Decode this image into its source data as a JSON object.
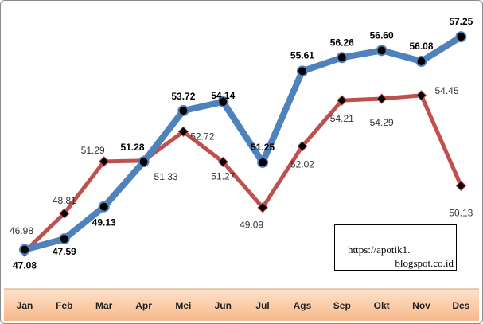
{
  "chart_data": {
    "type": "line",
    "categories": [
      "Jan",
      "Feb",
      "Mar",
      "Apr",
      "Mei",
      "Jun",
      "Jul",
      "Ags",
      "Sep",
      "Okt",
      "Nov",
      "Des"
    ],
    "series": [
      {
        "values": [
          47.08,
          47.59,
          49.13,
          51.28,
          53.72,
          54.14,
          51.25,
          55.61,
          56.26,
          56.6,
          56.08,
          57.25
        ],
        "color": "#4F81BD"
      },
      {
        "values": [
          46.98,
          48.81,
          51.29,
          51.33,
          52.72,
          51.27,
          49.09,
          52.02,
          54.21,
          54.29,
          54.45,
          50.13
        ],
        "color": "#C0504D"
      }
    ],
    "value_labels": {
      "blue": [
        "47.08",
        "47.59",
        "49.13",
        "51.28",
        "53.72",
        "54.14",
        "51.25",
        "55.61",
        "56.26",
        "56.60",
        "56.08",
        "57.25"
      ],
      "red": [
        "46.98",
        "48.81",
        "51.29",
        "51.33",
        "52.72",
        "51.27",
        "49.09",
        "52.02",
        "54.21",
        "54.29",
        "54.45",
        "50.13"
      ]
    },
    "ylim": [
      45.2,
      58.4
    ],
    "axis_band_color": "#FAC090"
  },
  "watermark": {
    "line1": "https://apotik1.",
    "line2": "blogspot.co.id"
  }
}
